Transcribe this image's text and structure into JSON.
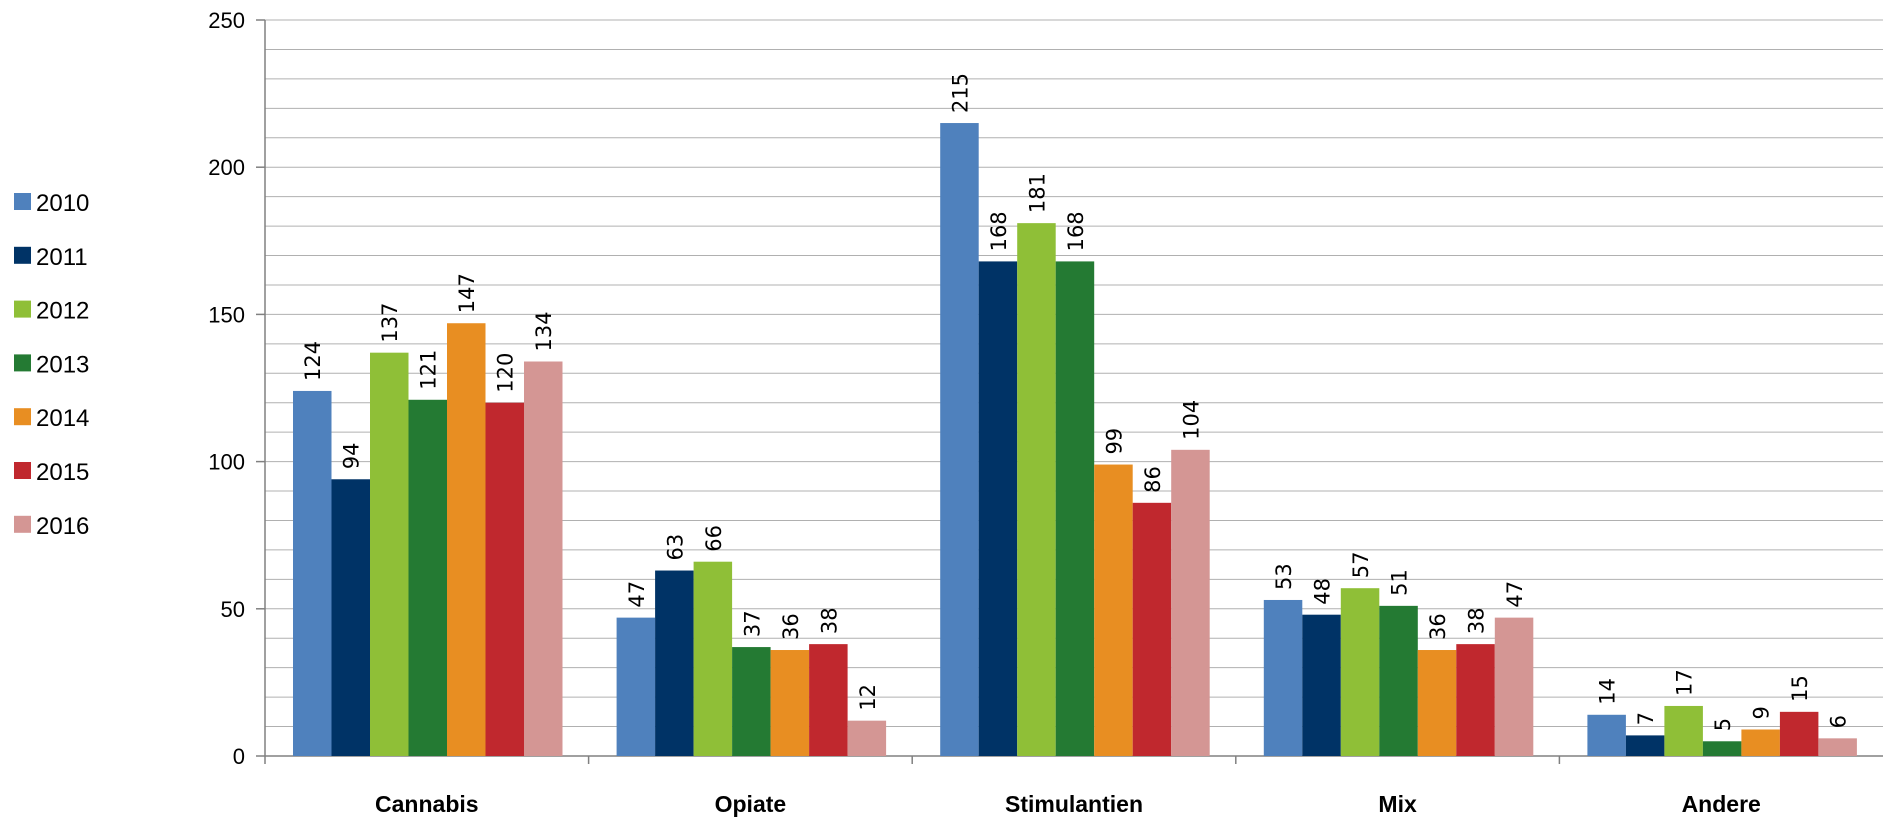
{
  "chart_data": {
    "type": "bar",
    "categories": [
      "Cannabis",
      "Opiate",
      "Stimulantien",
      "Mix",
      "Andere"
    ],
    "series": [
      {
        "name": "2010",
        "color": "#4f81bd",
        "values": [
          124,
          47,
          215,
          53,
          14
        ]
      },
      {
        "name": "2011",
        "color": "#003366",
        "values": [
          94,
          63,
          168,
          48,
          7
        ]
      },
      {
        "name": "2012",
        "color": "#8fbf37",
        "values": [
          137,
          66,
          181,
          57,
          17
        ]
      },
      {
        "name": "2013",
        "color": "#247a33",
        "values": [
          121,
          37,
          168,
          51,
          5
        ]
      },
      {
        "name": "2014",
        "color": "#e88e22",
        "values": [
          147,
          36,
          99,
          36,
          9
        ]
      },
      {
        "name": "2015",
        "color": "#c0282e",
        "values": [
          120,
          38,
          86,
          38,
          15
        ]
      },
      {
        "name": "2016",
        "color": "#d49694",
        "values": [
          134,
          12,
          104,
          47,
          6
        ]
      }
    ],
    "y_ticks": [
      "0",
      "50",
      "100",
      "150",
      "200",
      "250"
    ],
    "ylim": [
      0,
      250
    ],
    "title": "",
    "xlabel": "",
    "ylabel": "",
    "grid": true,
    "legend_position": "left",
    "data_labels": true
  }
}
